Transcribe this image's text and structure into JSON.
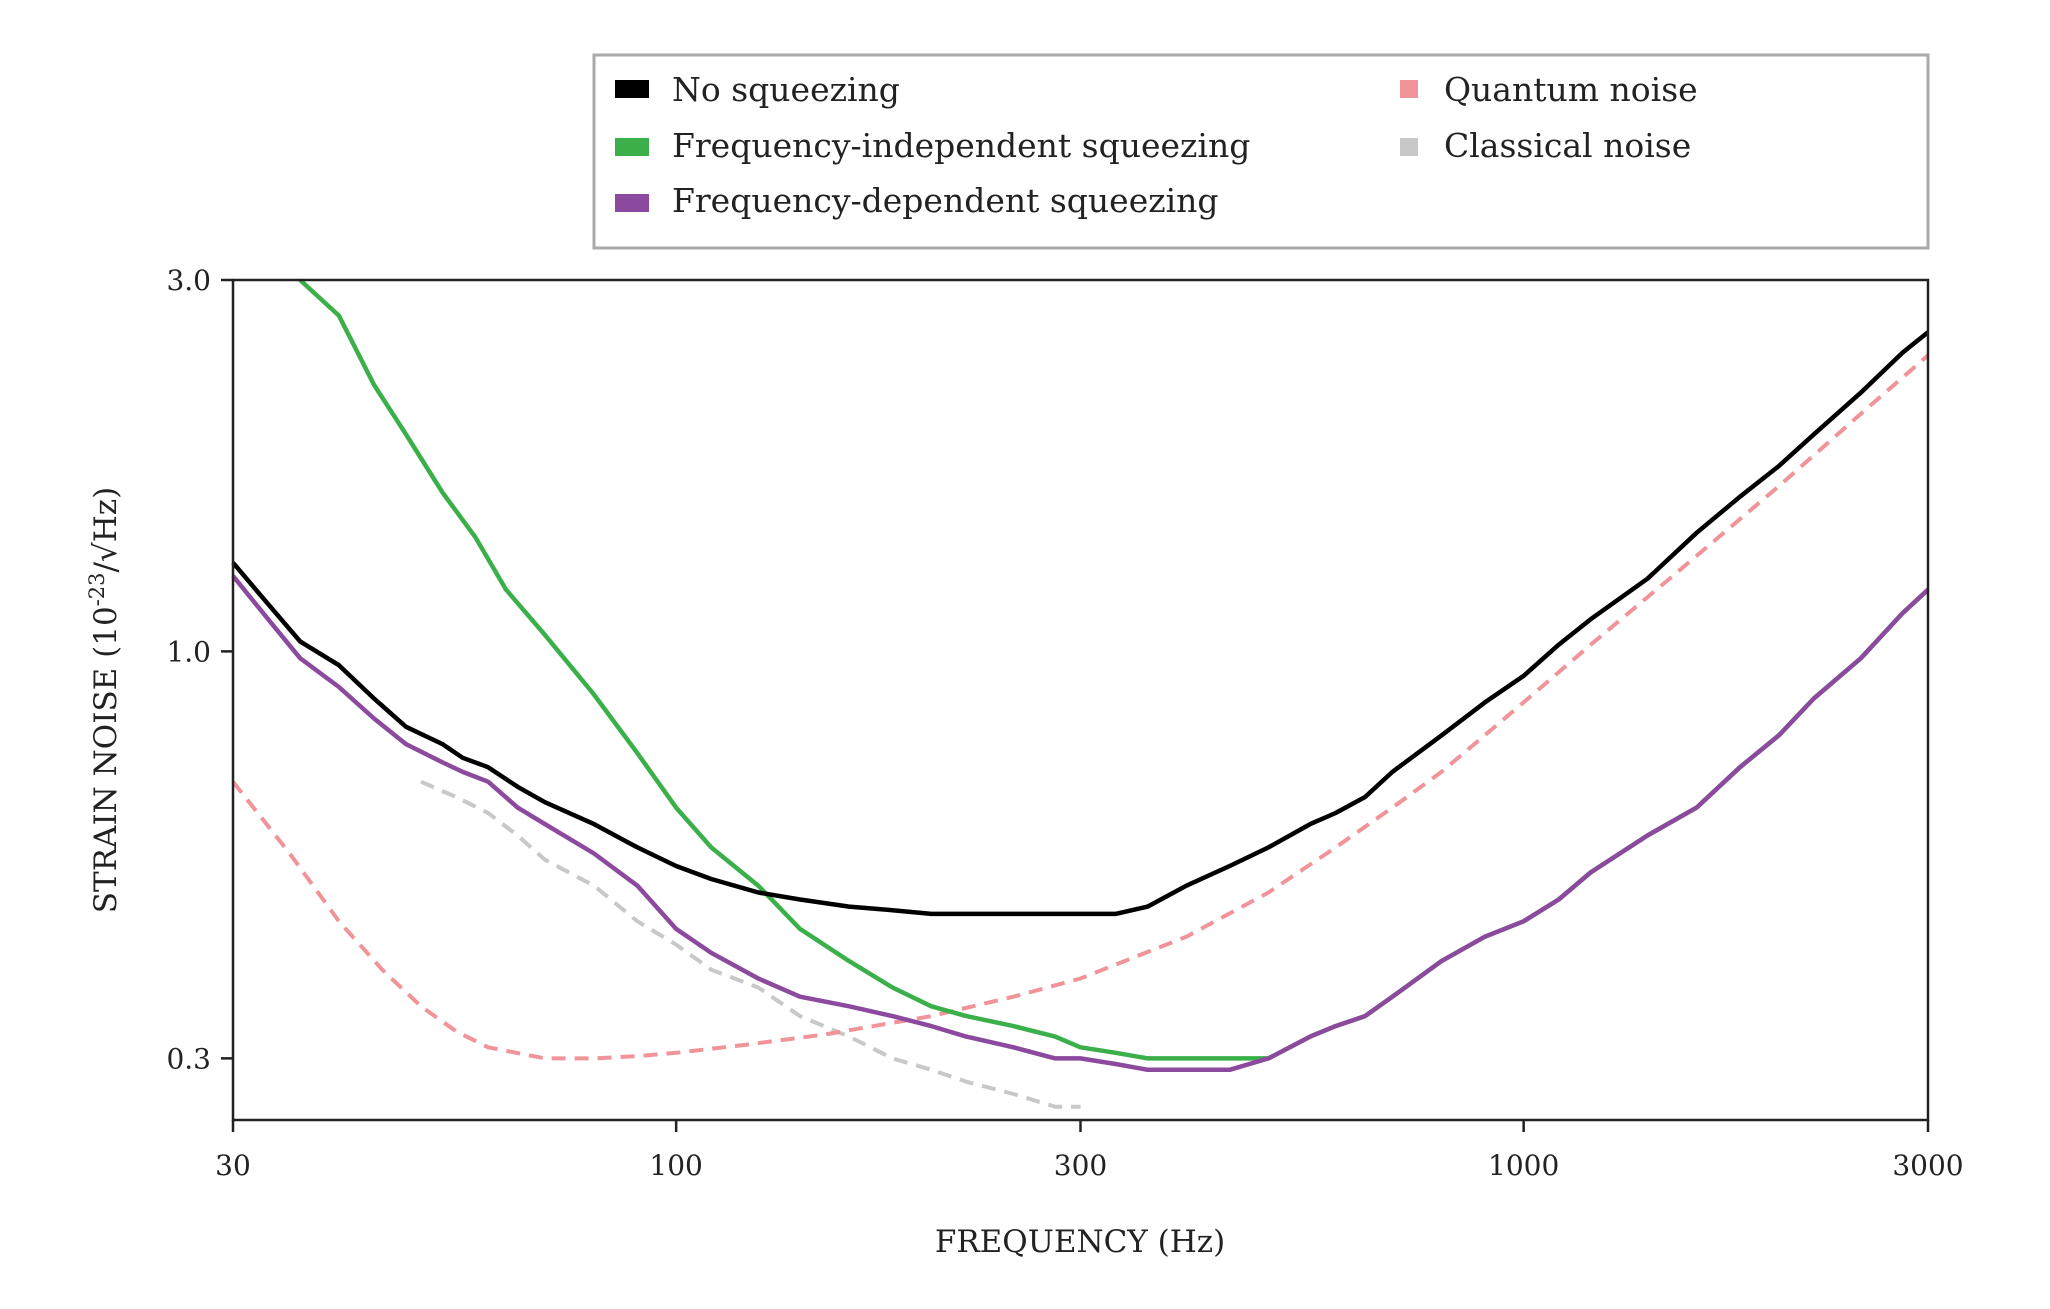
{
  "chart_data": {
    "type": "line",
    "title": "",
    "xlabel": "FREQUENCY (Hz)",
    "ylabel_prefix": "STRAIN NOISE (10",
    "ylabel_exp": "-23",
    "ylabel_suffix": "/√Hz)",
    "xscale": "log",
    "yscale": "log",
    "xlim": [
      30,
      3000
    ],
    "ylim": [
      0.25,
      3.0
    ],
    "xticks": [
      30,
      100,
      300,
      1000,
      3000
    ],
    "xtick_labels": [
      "30",
      "100",
      "300",
      "1000",
      "3000"
    ],
    "yticks": [
      0.3,
      1.0,
      3.0
    ],
    "ytick_labels": [
      "0.3",
      "1.0",
      "3.0"
    ],
    "grid": false,
    "legend_position": "top",
    "series": [
      {
        "name": "No squeezing",
        "color": "#000000",
        "style": "solid",
        "x": [
          30,
          33,
          36,
          40,
          44,
          48,
          53,
          56,
          60,
          65,
          70,
          80,
          90,
          100,
          110,
          125,
          140,
          160,
          180,
          200,
          220,
          250,
          280,
          300,
          330,
          360,
          400,
          450,
          500,
          560,
          600,
          650,
          700,
          800,
          900,
          1000,
          1100,
          1200,
          1400,
          1600,
          1800,
          2000,
          2200,
          2500,
          2800,
          3000
        ],
        "y": [
          1.3,
          1.15,
          1.03,
          0.96,
          0.87,
          0.8,
          0.76,
          0.73,
          0.71,
          0.67,
          0.64,
          0.6,
          0.56,
          0.53,
          0.51,
          0.49,
          0.48,
          0.47,
          0.465,
          0.46,
          0.46,
          0.46,
          0.46,
          0.46,
          0.46,
          0.47,
          0.5,
          0.53,
          0.56,
          0.6,
          0.62,
          0.65,
          0.7,
          0.78,
          0.86,
          0.93,
          1.02,
          1.1,
          1.24,
          1.42,
          1.58,
          1.73,
          1.9,
          2.15,
          2.42,
          2.57
        ]
      },
      {
        "name": "Frequency-independent squeezing",
        "color": "#3bb04a",
        "style": "solid",
        "x": [
          36,
          40,
          44,
          48,
          53,
          58,
          63,
          70,
          80,
          90,
          100,
          110,
          125,
          140,
          160,
          180,
          200,
          220,
          250,
          280,
          300,
          330,
          360,
          400,
          450,
          500,
          560,
          600,
          650,
          700,
          800,
          900,
          1000,
          1100,
          1200,
          1400,
          1600,
          1800,
          2000,
          2200,
          2500,
          2800,
          3000
        ],
        "y": [
          3.0,
          2.7,
          2.2,
          1.9,
          1.6,
          1.4,
          1.2,
          1.05,
          0.88,
          0.74,
          0.63,
          0.56,
          0.5,
          0.44,
          0.4,
          0.37,
          0.35,
          0.34,
          0.33,
          0.32,
          0.31,
          0.305,
          0.3,
          0.3,
          0.3,
          0.3,
          0.32,
          0.33,
          0.34,
          0.36,
          0.4,
          0.43,
          0.45,
          0.48,
          0.52,
          0.58,
          0.63,
          0.71,
          0.78,
          0.87,
          0.98,
          1.12,
          1.2
        ]
      },
      {
        "name": "Frequency-dependent squeezing",
        "color": "#8b4a9e",
        "style": "solid",
        "x": [
          30,
          33,
          36,
          40,
          44,
          48,
          53,
          56,
          60,
          65,
          70,
          80,
          90,
          100,
          110,
          125,
          140,
          160,
          180,
          200,
          220,
          250,
          280,
          300,
          330,
          360,
          400,
          450,
          500,
          560,
          600,
          650,
          700,
          800,
          900,
          1000,
          1100,
          1200,
          1400,
          1600,
          1800,
          2000,
          2200,
          2500,
          2800,
          3000
        ],
        "y": [
          1.25,
          1.1,
          0.98,
          0.9,
          0.82,
          0.76,
          0.72,
          0.7,
          0.68,
          0.63,
          0.6,
          0.55,
          0.5,
          0.44,
          0.41,
          0.38,
          0.36,
          0.35,
          0.34,
          0.33,
          0.32,
          0.31,
          0.3,
          0.3,
          0.295,
          0.29,
          0.29,
          0.29,
          0.3,
          0.32,
          0.33,
          0.34,
          0.36,
          0.4,
          0.43,
          0.45,
          0.48,
          0.52,
          0.58,
          0.63,
          0.71,
          0.78,
          0.87,
          0.98,
          1.12,
          1.2
        ]
      },
      {
        "name": "Quantum noise",
        "color": "#f0949a",
        "style": "dashed",
        "x": [
          30,
          35,
          40,
          45,
          50,
          55,
          60,
          70,
          80,
          90,
          100,
          120,
          150,
          200,
          250,
          300,
          400,
          500,
          600,
          700,
          800,
          1000,
          1200,
          1500,
          2000,
          2500,
          3000
        ],
        "y": [
          0.68,
          0.55,
          0.45,
          0.39,
          0.35,
          0.325,
          0.31,
          0.3,
          0.3,
          0.302,
          0.305,
          0.312,
          0.322,
          0.34,
          0.36,
          0.38,
          0.43,
          0.49,
          0.56,
          0.63,
          0.7,
          0.86,
          1.02,
          1.25,
          1.63,
          2.02,
          2.4
        ]
      },
      {
        "name": "Classical noise",
        "color": "#c8c8c8",
        "style": "dashed",
        "x": [
          50,
          55,
          60,
          65,
          70,
          80,
          90,
          100,
          110,
          125,
          140,
          160,
          180,
          200,
          220,
          250,
          280,
          300
        ],
        "y": [
          0.68,
          0.65,
          0.62,
          0.58,
          0.54,
          0.5,
          0.45,
          0.42,
          0.39,
          0.37,
          0.34,
          0.32,
          0.3,
          0.29,
          0.28,
          0.27,
          0.26,
          0.26
        ]
      }
    ]
  }
}
